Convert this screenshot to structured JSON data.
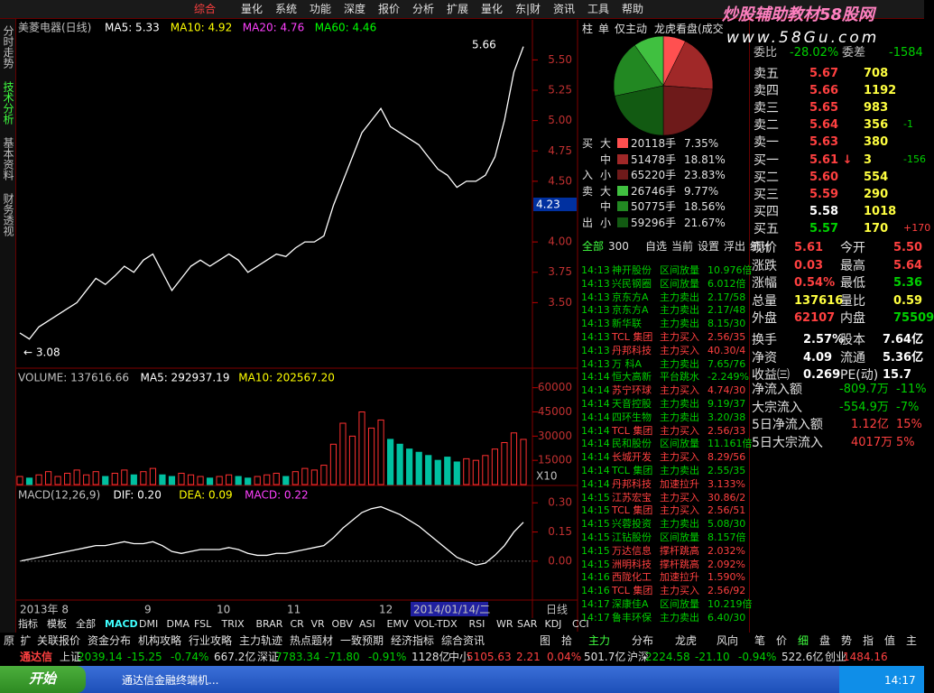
{
  "menu": [
    "综合",
    "量化",
    "系统",
    "功能",
    "深度",
    "报价",
    "分析",
    "扩展",
    "量化",
    "东|财",
    "资讯",
    "工具",
    "帮助"
  ],
  "watermark": {
    "title": "炒股辅助教材58股网",
    "url": "www.58Gu.com"
  },
  "side_tabs": [
    "分时走势",
    "技术分析",
    "基本资料",
    "财务透视"
  ],
  "chart_data": [
    {
      "type": "line",
      "title": "美菱电器(日线)",
      "legend": [
        "MA5: 5.33",
        "MA10: 4.92",
        "MA20: 4.76",
        "MA60: 4.46"
      ],
      "color": "#ffffff",
      "ylim": [
        2.96,
        5.83
      ],
      "yticks": [
        {
          "value": 3.5,
          "label": "3.50"
        },
        {
          "value": 3.75,
          "label": "3.75"
        },
        {
          "value": 4,
          "label": "4.00"
        },
        {
          "value": 4.5,
          "label": "4.50"
        },
        {
          "value": 4.75,
          "label": "4.75"
        },
        {
          "value": 5,
          "label": "5.00"
        },
        {
          "value": 5.25,
          "label": "5.25"
        },
        {
          "value": 5.5,
          "label": "5.50"
        }
      ],
      "annotations": [
        "5.66",
        "← 3.08"
      ],
      "price_tag": "4.23",
      "values": [
        3.25,
        3.2,
        3.3,
        3.35,
        3.4,
        3.45,
        3.5,
        3.6,
        3.7,
        3.65,
        3.72,
        3.8,
        3.75,
        3.85,
        3.9,
        3.75,
        3.6,
        3.7,
        3.8,
        3.85,
        3.8,
        3.85,
        3.9,
        3.85,
        3.75,
        3.8,
        3.85,
        3.9,
        3.88,
        3.95,
        4.0,
        4.0,
        4.05,
        4.3,
        4.5,
        4.7,
        4.9,
        5.0,
        5.1,
        4.95,
        4.9,
        4.85,
        4.8,
        4.7,
        4.6,
        4.55,
        4.45,
        4.5,
        4.5,
        4.55,
        4.7,
        5.0,
        5.4,
        5.61
      ]
    },
    {
      "type": "bar",
      "title": "VOLUME: 137616.66",
      "legend": [
        "MA5: 292937.19",
        "MA10: 202567.20"
      ],
      "unit": "X10",
      "colors": [
        "#ff3030",
        "#00c0a0"
      ],
      "ylim": [
        0,
        71000
      ],
      "yticks": [
        15000,
        30000,
        45000,
        60000
      ],
      "values": [
        5000,
        4000,
        6000,
        8000,
        5000,
        7000,
        9000,
        6000,
        8000,
        5000,
        7000,
        9000,
        6000,
        8000,
        10000,
        6000,
        5000,
        7000,
        6000,
        5000,
        4000,
        5000,
        6000,
        5000,
        4000,
        5000,
        6000,
        7000,
        5000,
        8000,
        10000,
        9000,
        12000,
        25000,
        38000,
        30000,
        45000,
        35000,
        40000,
        28000,
        25000,
        22000,
        20000,
        18000,
        15000,
        17000,
        14000,
        16000,
        15000,
        18000,
        22000,
        26000,
        32000,
        28000
      ]
    },
    {
      "type": "line",
      "title": "MACD(12,26,9)",
      "legend": [
        "DIF: 0.20",
        "DEA: 0.09",
        "MACD: 0.22"
      ],
      "color": "#ffffff",
      "ylim": [
        -0.2,
        0.38
      ],
      "yticks": [
        {
          "value": 0,
          "label": "0.00"
        },
        {
          "value": 0.15,
          "label": "0.15"
        },
        {
          "value": 0.3,
          "label": "0.30"
        }
      ],
      "values": [
        0.0,
        0.01,
        0.02,
        0.03,
        0.04,
        0.05,
        0.06,
        0.07,
        0.08,
        0.08,
        0.09,
        0.1,
        0.09,
        0.09,
        0.1,
        0.08,
        0.05,
        0.04,
        0.05,
        0.06,
        0.06,
        0.06,
        0.07,
        0.06,
        0.04,
        0.03,
        0.03,
        0.04,
        0.04,
        0.05,
        0.06,
        0.07,
        0.08,
        0.12,
        0.17,
        0.21,
        0.25,
        0.27,
        0.28,
        0.26,
        0.24,
        0.21,
        0.18,
        0.14,
        0.1,
        0.06,
        0.02,
        0.0,
        -0.02,
        -0.01,
        0.03,
        0.08,
        0.15,
        0.2
      ]
    },
    {
      "type": "pie",
      "tabs": [
        "柱",
        "单",
        "仅主动",
        "龙虎看盘(成交"
      ],
      "sides": [
        "买",
        null,
        "入",
        "卖",
        null,
        "出"
      ],
      "sizes": [
        "大",
        "中",
        "小",
        "大",
        "中",
        "小"
      ],
      "volumes": [
        "20118手",
        "51478手",
        "65220手",
        "26746手",
        "50775手",
        "59296手"
      ],
      "values": [
        7.35,
        18.81,
        23.83,
        9.77,
        18.56,
        21.67
      ],
      "value_labels": [
        "7.35%",
        "18.81%",
        "23.83%",
        "9.77%",
        "18.56%",
        "21.67%"
      ],
      "colors": [
        "#ff5050",
        "#a02828",
        "#6e1a1a",
        "#40c040",
        "#228822",
        "#125a12"
      ]
    }
  ],
  "x_labels": [
    "2013年 8",
    "9",
    "10",
    "11",
    "12",
    "2014/01/14/二",
    "日线"
  ],
  "list_tabs": [
    "全部",
    "300",
    "自选",
    "当前",
    "设置",
    "浮出",
    "统计"
  ],
  "trades": [
    [
      "14:13",
      "神开股份",
      "区间放量",
      "10.976倍"
    ],
    [
      "14:13",
      "兴民钢圈",
      "区间放量",
      "6.012倍"
    ],
    [
      "14:13",
      "京东方A",
      "主力卖出",
      "2.17/58"
    ],
    [
      "14:13",
      "京东方A",
      "主力卖出",
      "2.17/48"
    ],
    [
      "14:13",
      "新华联",
      "主力卖出",
      "8.15/30"
    ],
    [
      "14:13",
      "TCL 集团",
      "主力买入",
      "2.56/35"
    ],
    [
      "14:13",
      "丹邦科技",
      "主力买入",
      "40.30/4"
    ],
    [
      "14:13",
      "万 科A",
      "主力卖出",
      "7.65/76"
    ],
    [
      "14:14",
      "恒大高新",
      "平台跳水",
      "-2.249%"
    ],
    [
      "14:14",
      "苏宁环球",
      "主力买入",
      "4.74/30"
    ],
    [
      "14:14",
      "天音控股",
      "主力卖出",
      "9.19/37"
    ],
    [
      "14:14",
      "四环生物",
      "主力卖出",
      "3.20/38"
    ],
    [
      "14:14",
      "TCL 集团",
      "主力买入",
      "2.56/33"
    ],
    [
      "14:14",
      "民和股份",
      "区间放量",
      "11.161倍"
    ],
    [
      "14:14",
      "长城开发",
      "主力买入",
      "8.29/56"
    ],
    [
      "14:14",
      "TCL 集团",
      "主力卖出",
      "2.55/35"
    ],
    [
      "14:14",
      "丹邦科技",
      "加速拉升",
      "3.133%"
    ],
    [
      "14:15",
      "江苏宏宝",
      "主力买入",
      "30.86/2"
    ],
    [
      "14:15",
      "TCL 集团",
      "主力买入",
      "2.56/51"
    ],
    [
      "14:15",
      "兴蓉投资",
      "主力卖出",
      "5.08/30"
    ],
    [
      "14:15",
      "江钻股份",
      "区间放量",
      "8.157倍"
    ],
    [
      "14:15",
      "万达信息",
      "撑杆跳高",
      "2.032%"
    ],
    [
      "14:15",
      "洲明科技",
      "撑杆跳高",
      "2.092%"
    ],
    [
      "14:16",
      "西陇化工",
      "加速拉升",
      "1.590%"
    ],
    [
      "14:16",
      "TCL 集团",
      "主力买入",
      "2.56/92"
    ],
    [
      "14:17",
      "深康佳A",
      "区间放量",
      "10.219倍"
    ],
    [
      "14:17",
      "鲁丰环保",
      "主力卖出",
      "6.40/30"
    ]
  ],
  "order_book": {
    "header": [
      "委比",
      "-28.02%",
      "委差",
      "-1584"
    ],
    "rows": [
      [
        "卖五",
        "5.67",
        "708",
        null
      ],
      [
        "卖四",
        "5.66",
        "1192",
        null
      ],
      [
        "卖三",
        "5.65",
        "983",
        null
      ],
      [
        "卖二",
        "5.64",
        "356",
        "-1"
      ],
      [
        "卖一",
        "5.63",
        "380",
        null
      ],
      [
        "买一",
        "5.61 ↓",
        "3",
        "-156"
      ],
      [
        "买二",
        "5.60",
        "554",
        null
      ],
      [
        "买三",
        "5.59",
        "290",
        null
      ],
      [
        "买四",
        "5.58",
        "1018",
        null
      ],
      [
        "买五",
        "5.57",
        "170",
        "+170"
      ]
    ],
    "price_colors": [
      "#ff4040",
      "#ff4040",
      "#ff4040",
      "#ff4040",
      "#ff4040",
      "#ff4040",
      "#ff4040",
      "#ff4040",
      "#ffffff",
      "#00d000"
    ]
  },
  "quote": [
    [
      "现价",
      "5.61",
      "今开",
      "5.50"
    ],
    [
      "涨跌",
      "0.03",
      "最高",
      "5.64"
    ],
    [
      "涨幅",
      "0.54%",
      "最低",
      "5.36"
    ],
    [
      "总量",
      "137616",
      "量比",
      "0.59"
    ],
    [
      "外盘",
      "62107",
      "内盘",
      "75509"
    ],
    [
      "换手",
      "2.57%",
      "股本",
      "7.64亿"
    ],
    [
      "净资",
      "4.09",
      "流通",
      "5.36亿"
    ],
    [
      "收益㈢",
      "0.269",
      "PE(动)",
      "15.7"
    ]
  ],
  "capital_flow": [
    [
      "净流入额",
      "-809.7万",
      "-11%"
    ],
    [
      "大宗流入",
      "-554.9万",
      "-7%"
    ],
    [
      "5日净流入额",
      "1.12亿",
      "15%"
    ],
    [
      "5日大宗流入",
      "4017万",
      "5%"
    ]
  ],
  "indicator_tabs": [
    "指标",
    "模板",
    "全部",
    "MACD",
    "DMI",
    "DMA",
    "FSL",
    "TRIX",
    "BRAR",
    "CR",
    "VR",
    "OBV",
    "ASI",
    "EMV",
    "VOL-TDX",
    "RSI",
    "WR",
    "SAR",
    "KDJ",
    "CCI"
  ],
  "function_tabs": [
    "原",
    "扩",
    "关联报价",
    "资金分布",
    "机构攻略",
    "行业攻略",
    "主力轨迹",
    "热点题材",
    "一致预期",
    "经济指标",
    "综合资讯"
  ],
  "right_tabs": [
    "图",
    "拾",
    "主力",
    "分布",
    "龙虎",
    "风向"
  ],
  "detail_tabs": [
    "笔",
    "价",
    "细",
    "盘",
    "势",
    "指",
    "值",
    "主"
  ],
  "index_bar": {
    "brand": "通达信",
    "items": [
      [
        "上证",
        "2039.14",
        "-15.25",
        "-0.74%",
        "667.2亿"
      ],
      [
        "深证",
        "7783.34",
        "-71.80",
        "-0.91%",
        "1128亿"
      ],
      [
        "中小",
        "5105.63",
        "2.21",
        "0.04%",
        "501.7亿"
      ],
      [
        "沪深",
        "2224.58",
        "-21.10",
        "-0.94%",
        "522.6亿"
      ],
      [
        "创业",
        "1484.16"
      ]
    ]
  },
  "taskbar": {
    "start": "开始",
    "window": "通达信金融终端机...",
    "clock": "14:17"
  }
}
